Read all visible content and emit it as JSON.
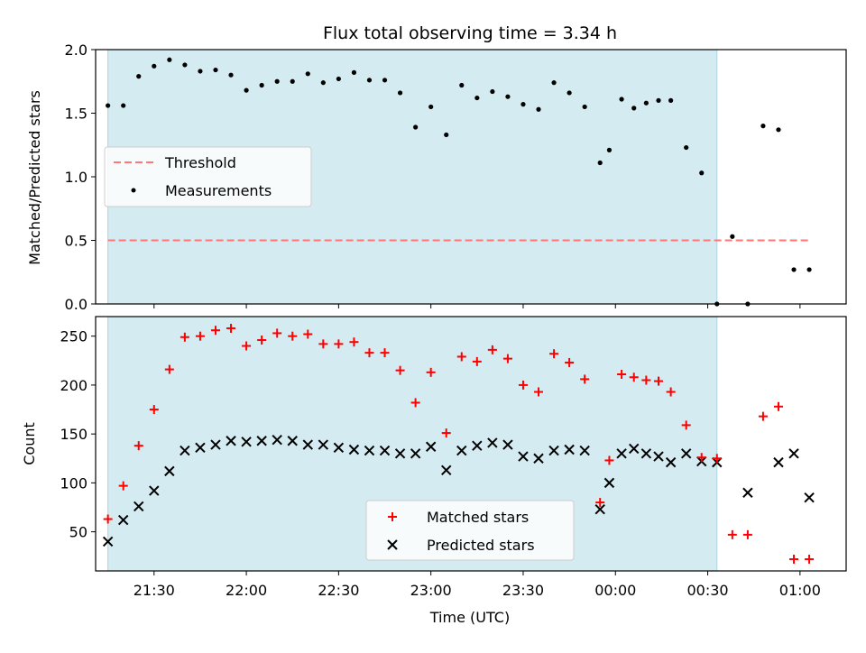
{
  "chart_data": {
    "title": "Flux total observing time = 3.34 h",
    "xlabel": "Time (UTC)",
    "x_ticks": [
      "21:30",
      "22:00",
      "22:30",
      "23:00",
      "23:30",
      "00:00",
      "00:30",
      "01:00"
    ],
    "x_range": [
      "21:11",
      "01:15"
    ],
    "shaded_interval": [
      "21:15",
      "00:33"
    ],
    "shade_color": "#d4ebf1",
    "panels": [
      {
        "type": "scatter",
        "ylabel": "Matched/Predicted stars",
        "ylim": [
          0,
          2.0
        ],
        "yticks": [
          "0.0",
          "0.5",
          "1.0",
          "1.5",
          "2.0"
        ],
        "legend_position": "center-left",
        "threshold": {
          "name": "Threshold",
          "value": 0.5,
          "x_range": [
            "21:15",
            "01:03"
          ],
          "color": "#ff7777",
          "style": "dashed"
        },
        "series": [
          {
            "name": "Measurements",
            "marker": "dot",
            "color": "#000000",
            "x": [
              "21:15",
              "21:20",
              "21:25",
              "21:30",
              "21:35",
              "21:40",
              "21:45",
              "21:50",
              "21:55",
              "22:00",
              "22:05",
              "22:10",
              "22:15",
              "22:20",
              "22:25",
              "22:30",
              "22:35",
              "22:40",
              "22:45",
              "22:50",
              "22:55",
              "23:00",
              "23:05",
              "23:10",
              "23:15",
              "23:20",
              "23:25",
              "23:30",
              "23:35",
              "23:40",
              "23:45",
              "23:50",
              "23:55",
              "23:58",
              "00:02",
              "00:06",
              "00:10",
              "00:14",
              "00:18",
              "00:23",
              "00:28",
              "00:33",
              "00:38",
              "00:43",
              "00:48",
              "00:53",
              "00:58",
              "01:03"
            ],
            "values": [
              1.56,
              1.56,
              1.79,
              1.87,
              1.92,
              1.88,
              1.83,
              1.84,
              1.8,
              1.68,
              1.72,
              1.75,
              1.75,
              1.81,
              1.74,
              1.77,
              1.82,
              1.76,
              1.76,
              1.66,
              1.39,
              1.55,
              1.33,
              1.72,
              1.62,
              1.67,
              1.63,
              1.57,
              1.53,
              1.74,
              1.66,
              1.55,
              1.11,
              1.21,
              1.61,
              1.54,
              1.58,
              1.6,
              1.6,
              1.23,
              1.03,
              0.0,
              0.53,
              0.0,
              1.4,
              1.37,
              0.27,
              0.27
            ]
          }
        ]
      },
      {
        "type": "scatter",
        "ylabel": "Count",
        "ylim": [
          10,
          270
        ],
        "yticks": [
          "50",
          "100",
          "150",
          "200",
          "250"
        ],
        "legend_position": "bottom-center",
        "series": [
          {
            "name": "Matched stars",
            "marker": "plus",
            "color": "#ff0000",
            "x": [
              "21:15",
              "21:20",
              "21:25",
              "21:30",
              "21:35",
              "21:40",
              "21:45",
              "21:50",
              "21:55",
              "22:00",
              "22:05",
              "22:10",
              "22:15",
              "22:20",
              "22:25",
              "22:30",
              "22:35",
              "22:40",
              "22:45",
              "22:50",
              "22:55",
              "23:00",
              "23:05",
              "23:10",
              "23:15",
              "23:20",
              "23:25",
              "23:30",
              "23:35",
              "23:40",
              "23:45",
              "23:50",
              "23:55",
              "23:58",
              "00:02",
              "00:06",
              "00:10",
              "00:14",
              "00:18",
              "00:23",
              "00:28",
              "00:33",
              "00:38",
              "00:43",
              "00:48",
              "00:53",
              "00:58",
              "01:03"
            ],
            "values": [
              63,
              97,
              138,
              175,
              216,
              249,
              250,
              256,
              258,
              240,
              246,
              253,
              250,
              252,
              242,
              242,
              244,
              233,
              233,
              215,
              182,
              213,
              151,
              229,
              224,
              236,
              227,
              200,
              193,
              232,
              223,
              206,
              80,
              123,
              211,
              208,
              205,
              204,
              193,
              159,
              126,
              125,
              47,
              47,
              168,
              178,
              22,
              22
            ]
          },
          {
            "name": "Predicted stars",
            "marker": "x",
            "color": "#000000",
            "x": [
              "21:15",
              "21:20",
              "21:25",
              "21:30",
              "21:35",
              "21:40",
              "21:45",
              "21:50",
              "21:55",
              "22:00",
              "22:05",
              "22:10",
              "22:15",
              "22:20",
              "22:25",
              "22:30",
              "22:35",
              "22:40",
              "22:45",
              "22:50",
              "22:55",
              "23:00",
              "23:05",
              "23:10",
              "23:15",
              "23:20",
              "23:25",
              "23:30",
              "23:35",
              "23:40",
              "23:45",
              "23:50",
              "23:55",
              "23:58",
              "00:02",
              "00:06",
              "00:10",
              "00:14",
              "00:18",
              "00:23",
              "00:28",
              "00:33",
              "00:43",
              "00:53",
              "00:58",
              "01:03"
            ],
            "values": [
              40,
              62,
              76,
              92,
              112,
              133,
              136,
              139,
              143,
              142,
              143,
              144,
              143,
              139,
              139,
              136,
              134,
              133,
              133,
              130,
              130,
              137,
              113,
              133,
              138,
              141,
              139,
              127,
              125,
              133,
              134,
              133,
              73,
              100,
              130,
              135,
              130,
              127,
              121,
              130,
              122,
              121,
              90,
              121,
              130,
              85
            ]
          }
        ]
      }
    ]
  }
}
